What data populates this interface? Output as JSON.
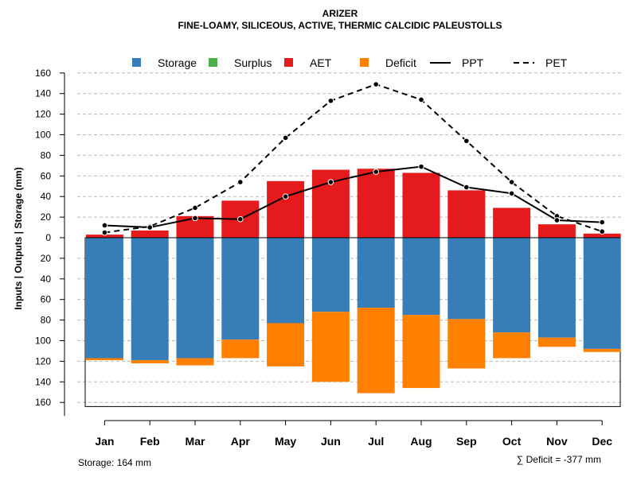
{
  "chart_data": {
    "type": "bar",
    "title": "ARIZER",
    "subtitle": "FINE-LOAMY, SILICEOUS, ACTIVE, THERMIC CALCIDIC PALEUSTOLLS",
    "ylabel": "Inputs | Outputs | Storage    (mm)",
    "ylim": [
      -165,
      160
    ],
    "y_tick_values": [
      160,
      140,
      120,
      100,
      80,
      60,
      40,
      20,
      0,
      -20,
      -40,
      -60,
      -80,
      -100,
      -120,
      -140,
      -160
    ],
    "y_tick_labels": [
      "160",
      "140",
      "120",
      "100",
      "80",
      "60",
      "40",
      "20",
      "0",
      "20",
      "40",
      "60",
      "80",
      "100",
      "120",
      "140",
      "160"
    ],
    "grid": true,
    "categories": [
      "Jan",
      "Feb",
      "Mar",
      "Apr",
      "May",
      "Jun",
      "Jul",
      "Aug",
      "Sep",
      "Oct",
      "Nov",
      "Dec"
    ],
    "legend": [
      {
        "name": "Storage",
        "kind": "box",
        "color": "#377EB8"
      },
      {
        "name": "Surplus",
        "kind": "box",
        "color": "#4DAF4A"
      },
      {
        "name": "AET",
        "kind": "box",
        "color": "#E41A1C"
      },
      {
        "name": "Deficit",
        "kind": "box",
        "color": "#FF7F00"
      },
      {
        "name": "PPT",
        "kind": "solid-line",
        "color": "#000000"
      },
      {
        "name": "PET",
        "kind": "dashed-line",
        "color": "#000000"
      }
    ],
    "series": [
      {
        "name": "AET",
        "color": "#E41A1C",
        "values": [
          3,
          7,
          21,
          36,
          55,
          66,
          67,
          63,
          46,
          29,
          13,
          4
        ]
      },
      {
        "name": "Storage",
        "color": "#377EB8",
        "values": [
          117,
          119,
          117,
          99,
          83,
          72,
          68,
          75,
          79,
          92,
          97,
          108
        ]
      },
      {
        "name": "Deficit",
        "color": "#FF7F00",
        "values": [
          2,
          3,
          7,
          18,
          42,
          68,
          83,
          71,
          48,
          25,
          9,
          3
        ]
      },
      {
        "name": "PPT",
        "color": "#000000",
        "values": [
          12,
          10,
          19,
          18,
          40,
          54,
          64,
          69,
          49,
          43,
          17,
          15
        ]
      },
      {
        "name": "PET",
        "color": "#000000",
        "values": [
          5,
          11,
          29,
          54,
          97,
          133,
          149,
          134,
          94,
          54,
          21,
          6
        ]
      }
    ],
    "storage_capacity": 164,
    "footer_left": "Storage: 164 mm",
    "footer_right": "∑ Deficit = -377 mm"
  }
}
